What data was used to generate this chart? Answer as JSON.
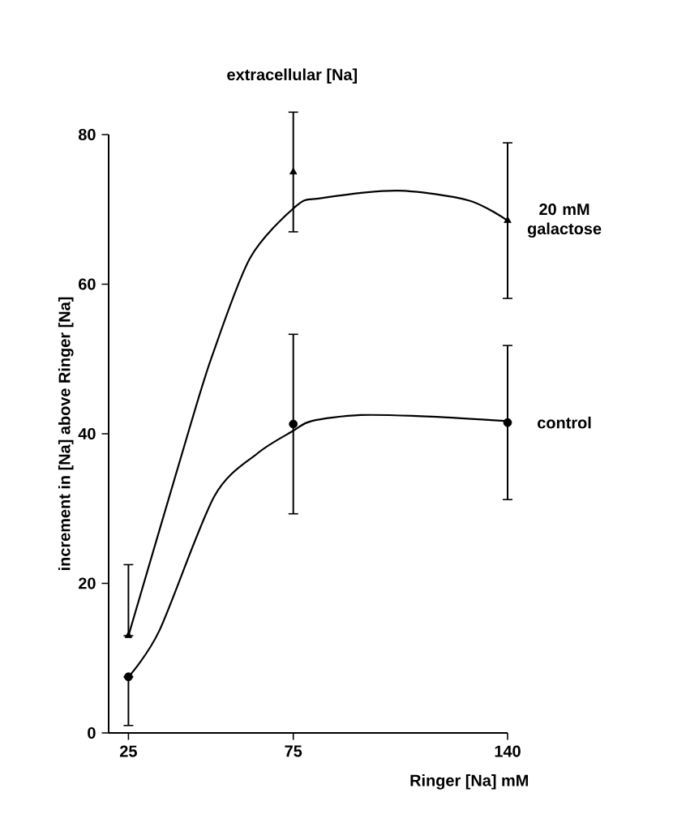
{
  "chart_data": {
    "type": "scatter",
    "title": "extracellular [Na]",
    "xlabel": "Ringer [Na] mM",
    "ylabel": "increment in [Na] above Ringer [Na]",
    "xlim": [
      19,
      140
    ],
    "ylim": [
      0,
      80
    ],
    "xticks": [
      25,
      75,
      140
    ],
    "yticks": [
      0,
      20,
      40,
      60,
      80
    ],
    "series": [
      {
        "name": "20 mM galactose",
        "color": "#000000",
        "marker": "triangle",
        "x": [
          25,
          75,
          140
        ],
        "values": [
          13,
          75,
          68.5
        ],
        "errors": [
          [
            13,
            22.5
          ],
          8,
          10.4
        ]
      },
      {
        "name": "control",
        "color": "#000000",
        "marker": "circle",
        "x": [
          25,
          75,
          140
        ],
        "values": [
          7.5,
          41.3,
          41.5
        ],
        "errors": [
          [
            1,
            7.5
          ],
          12,
          10.3
        ]
      },
      {
        "type": "line",
        "color": "#000000",
        "marker": "none",
        "x": [
          25,
          43.5,
          50.3,
          61.9,
          76,
          83.5,
          106.7,
          128.2,
          140
        ],
        "values": [
          13,
          40.7,
          50.3,
          63.5,
          70.5,
          71.5,
          72.5,
          71.2,
          68.5
        ]
      },
      {
        "type": "line",
        "color": "#000000",
        "marker": "none",
        "x": [
          25,
          34.4,
          51,
          64.2,
          75,
          80.5,
          95.4,
          116.9,
          140
        ],
        "values": [
          7.5,
          13.7,
          31.6,
          37.4,
          40.4,
          41.7,
          42.5,
          42.3,
          41.7
        ]
      }
    ]
  }
}
